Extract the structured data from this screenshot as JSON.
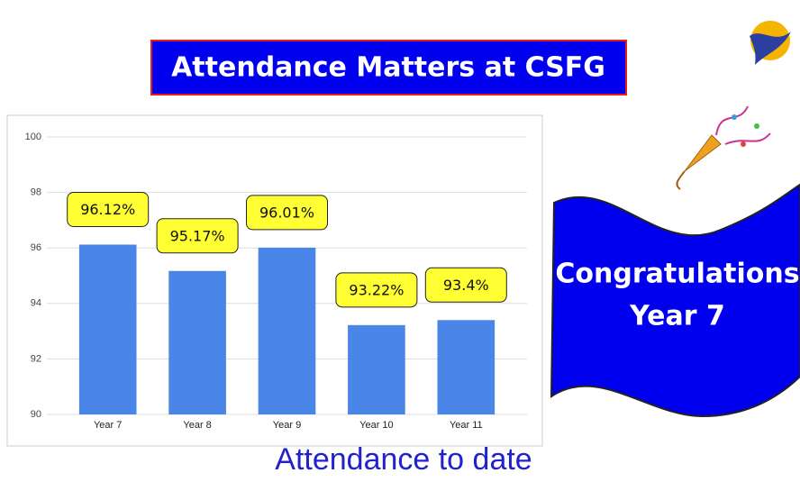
{
  "title": "Attendance Matters at CSFG",
  "chart_data": {
    "type": "bar",
    "categories": [
      "Year 7",
      "Year 8",
      "Year 9",
      "Year 10",
      "Year 11"
    ],
    "values": [
      96.12,
      95.17,
      96.01,
      93.22,
      93.4
    ],
    "value_labels": [
      "96.12%",
      "95.17%",
      "96.01%",
      "93.22%",
      "93.4%"
    ],
    "color": "#4a86e8",
    "ylim": [
      90,
      100
    ],
    "yticks": [
      90,
      92,
      94,
      96,
      98,
      100
    ],
    "grid": true
  },
  "caption": "Attendance to date",
  "banner": {
    "lines": [
      "Congratulations",
      "Year 7"
    ]
  }
}
